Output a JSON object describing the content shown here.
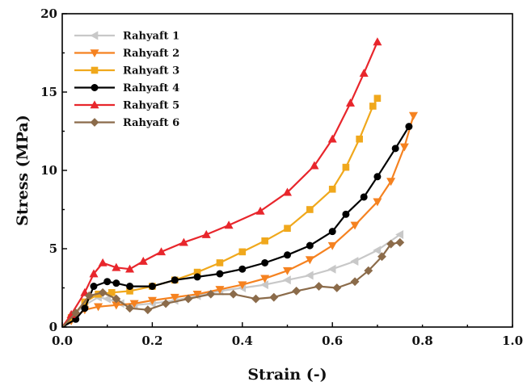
{
  "chart_data": {
    "type": "line",
    "xlabel": "Strain (-)",
    "ylabel": "Stress (MPa)",
    "xlim": [
      0.0,
      1.0
    ],
    "ylim": [
      0,
      20
    ],
    "x_ticks": [
      "0.0",
      "0.2",
      "0.4",
      "0.6",
      "0.8",
      "1.0"
    ],
    "y_ticks": [
      "0",
      "5",
      "10",
      "15",
      "20"
    ],
    "grid": false,
    "legend_position": "top-left",
    "series": [
      {
        "name": "Rahyaft 1",
        "color": "#c8c8c8",
        "marker": "triangle-left",
        "points": [
          [
            0,
            0
          ],
          [
            0.02,
            0.6
          ],
          [
            0.05,
            1.4
          ],
          [
            0.08,
            1.9
          ],
          [
            0.1,
            1.8
          ],
          [
            0.13,
            1.5
          ],
          [
            0.16,
            1.4
          ],
          [
            0.2,
            1.5
          ],
          [
            0.25,
            1.7
          ],
          [
            0.3,
            2.0
          ],
          [
            0.35,
            2.3
          ],
          [
            0.4,
            2.5
          ],
          [
            0.45,
            2.7
          ],
          [
            0.5,
            3.0
          ],
          [
            0.55,
            3.3
          ],
          [
            0.6,
            3.7
          ],
          [
            0.65,
            4.2
          ],
          [
            0.7,
            4.9
          ],
          [
            0.75,
            5.9
          ]
        ]
      },
      {
        "name": "Rahyaft 2",
        "color": "#f58220",
        "marker": "triangle-down",
        "points": [
          [
            0,
            0
          ],
          [
            0.02,
            0.4
          ],
          [
            0.05,
            1.1
          ],
          [
            0.08,
            1.3
          ],
          [
            0.12,
            1.4
          ],
          [
            0.16,
            1.5
          ],
          [
            0.2,
            1.7
          ],
          [
            0.25,
            1.9
          ],
          [
            0.3,
            2.1
          ],
          [
            0.35,
            2.4
          ],
          [
            0.4,
            2.7
          ],
          [
            0.45,
            3.1
          ],
          [
            0.5,
            3.6
          ],
          [
            0.55,
            4.3
          ],
          [
            0.6,
            5.2
          ],
          [
            0.65,
            6.5
          ],
          [
            0.7,
            8.0
          ],
          [
            0.73,
            9.3
          ],
          [
            0.76,
            11.5
          ],
          [
            0.78,
            13.5
          ]
        ]
      },
      {
        "name": "Rahyaft 3",
        "color": "#f0a81c",
        "marker": "square",
        "points": [
          [
            0,
            0
          ],
          [
            0.02,
            0.6
          ],
          [
            0.05,
            1.6
          ],
          [
            0.08,
            2.1
          ],
          [
            0.11,
            2.2
          ],
          [
            0.15,
            2.3
          ],
          [
            0.2,
            2.6
          ],
          [
            0.25,
            3.0
          ],
          [
            0.3,
            3.5
          ],
          [
            0.35,
            4.1
          ],
          [
            0.4,
            4.8
          ],
          [
            0.45,
            5.5
          ],
          [
            0.5,
            6.3
          ],
          [
            0.55,
            7.5
          ],
          [
            0.6,
            8.8
          ],
          [
            0.63,
            10.2
          ],
          [
            0.66,
            12.0
          ],
          [
            0.69,
            14.1
          ],
          [
            0.7,
            14.6
          ]
        ]
      },
      {
        "name": "Rahyaft 4",
        "color": "#000000",
        "marker": "circle",
        "points": [
          [
            0,
            0
          ],
          [
            0.03,
            0.5
          ],
          [
            0.05,
            1.2
          ],
          [
            0.07,
            2.6
          ],
          [
            0.1,
            2.9
          ],
          [
            0.12,
            2.8
          ],
          [
            0.15,
            2.6
          ],
          [
            0.2,
            2.6
          ],
          [
            0.25,
            3.0
          ],
          [
            0.3,
            3.2
          ],
          [
            0.35,
            3.4
          ],
          [
            0.4,
            3.7
          ],
          [
            0.45,
            4.1
          ],
          [
            0.5,
            4.6
          ],
          [
            0.55,
            5.2
          ],
          [
            0.6,
            6.1
          ],
          [
            0.63,
            7.2
          ],
          [
            0.67,
            8.3
          ],
          [
            0.7,
            9.6
          ],
          [
            0.74,
            11.4
          ],
          [
            0.77,
            12.8
          ]
        ]
      },
      {
        "name": "Rahyaft 5",
        "color": "#e8262c",
        "marker": "triangle-up",
        "points": [
          [
            0,
            0
          ],
          [
            0.02,
            0.8
          ],
          [
            0.05,
            2.2
          ],
          [
            0.07,
            3.4
          ],
          [
            0.09,
            4.1
          ],
          [
            0.12,
            3.8
          ],
          [
            0.15,
            3.7
          ],
          [
            0.18,
            4.2
          ],
          [
            0.22,
            4.8
          ],
          [
            0.27,
            5.4
          ],
          [
            0.32,
            5.9
          ],
          [
            0.37,
            6.5
          ],
          [
            0.44,
            7.4
          ],
          [
            0.5,
            8.6
          ],
          [
            0.56,
            10.3
          ],
          [
            0.6,
            12.0
          ],
          [
            0.64,
            14.3
          ],
          [
            0.67,
            16.2
          ],
          [
            0.7,
            18.2
          ]
        ]
      },
      {
        "name": "Rahyaft 6",
        "color": "#8b6b4a",
        "marker": "diamond",
        "points": [
          [
            0,
            0
          ],
          [
            0.03,
            0.9
          ],
          [
            0.06,
            2.0
          ],
          [
            0.09,
            2.2
          ],
          [
            0.12,
            1.8
          ],
          [
            0.15,
            1.2
          ],
          [
            0.19,
            1.1
          ],
          [
            0.23,
            1.5
          ],
          [
            0.28,
            1.8
          ],
          [
            0.33,
            2.1
          ],
          [
            0.38,
            2.1
          ],
          [
            0.43,
            1.8
          ],
          [
            0.47,
            1.9
          ],
          [
            0.52,
            2.3
          ],
          [
            0.57,
            2.6
          ],
          [
            0.61,
            2.5
          ],
          [
            0.65,
            2.9
          ],
          [
            0.68,
            3.6
          ],
          [
            0.71,
            4.5
          ],
          [
            0.73,
            5.3
          ],
          [
            0.75,
            5.4
          ]
        ]
      }
    ]
  }
}
